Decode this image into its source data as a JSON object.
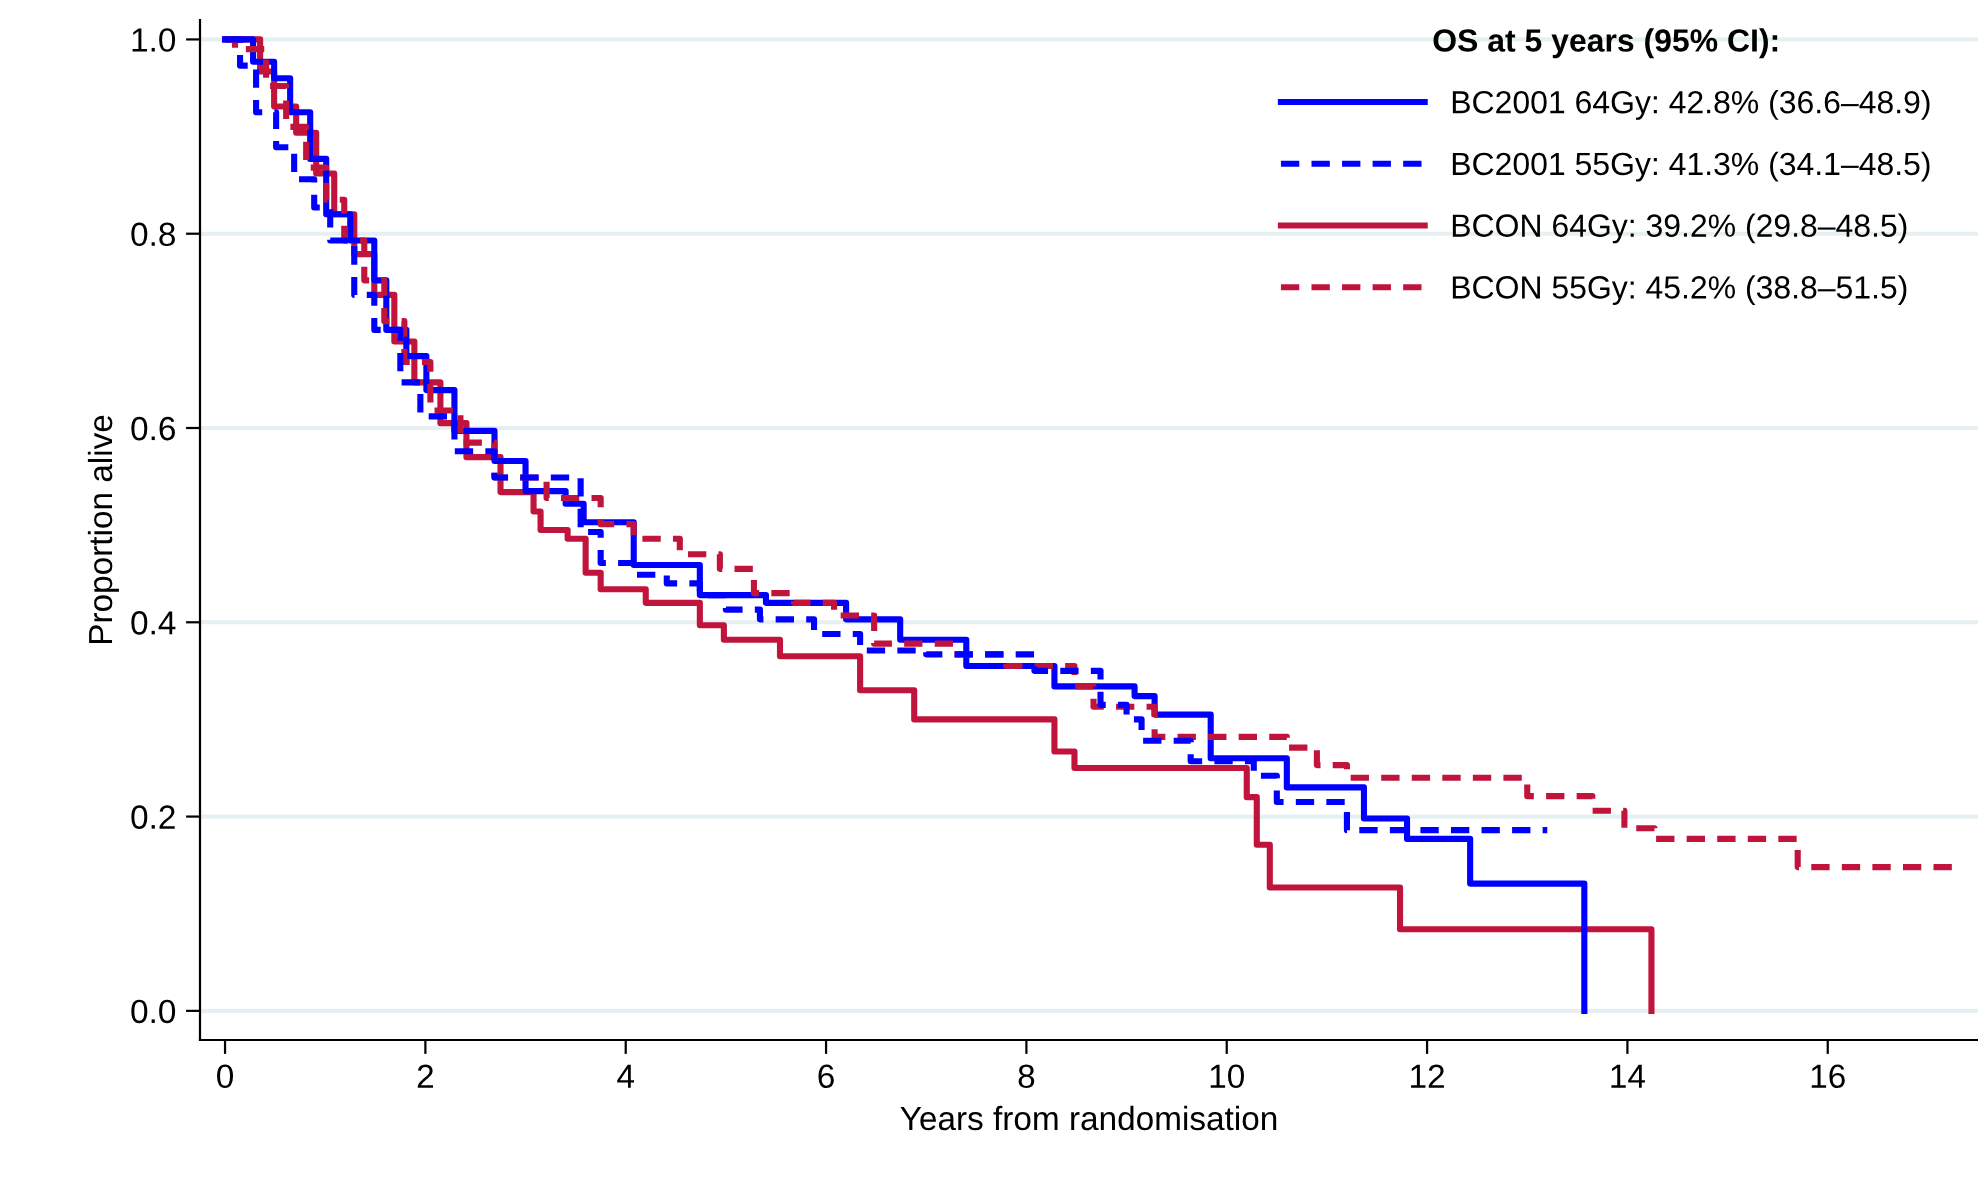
{
  "chart_data": {
    "type": "step",
    "xlabel": "Years from randomisation",
    "ylabel": "Proportion alive",
    "legend_title": "OS at 5 years (95% CI):",
    "legend": "top right",
    "grid": "y",
    "marker": "none",
    "xlim": [
      -0.25,
      17.5
    ],
    "ylim": [
      -0.03,
      1.02
    ],
    "xticks": [
      0,
      2,
      4,
      6,
      8,
      10,
      12,
      14,
      16
    ],
    "yticks": [
      {
        "value": 0,
        "label": "0.0"
      },
      {
        "value": 0.2,
        "label": "0.2"
      },
      {
        "value": 0.4,
        "label": "0.4"
      },
      {
        "value": 0.6,
        "label": "0.6"
      },
      {
        "value": 0.8,
        "label": "0.8"
      },
      {
        "value": 1,
        "label": "1.0"
      }
    ],
    "series": [
      {
        "name": "BC2001 64Gy: 42.8% (36.6–48.9)",
        "color": "#0000ff",
        "line_style": "solid",
        "x": [
          0,
          0.28,
          0.49,
          0.65,
          0.85,
          1.01,
          1.25,
          1.49,
          1.61,
          1.81,
          2.01,
          2.29,
          2.69,
          3.0,
          3.4,
          3.58,
          4.08,
          4.74,
          5.4,
          6.2,
          6.74,
          7.4,
          8.28,
          9.08,
          9.28,
          9.84,
          10.6,
          11.37,
          11.8,
          12.43,
          13.57
        ],
        "values": [
          1.0,
          0.977,
          0.96,
          0.925,
          0.877,
          0.82,
          0.793,
          0.752,
          0.701,
          0.674,
          0.639,
          0.597,
          0.566,
          0.535,
          0.522,
          0.503,
          0.459,
          0.428,
          0.42,
          0.403,
          0.382,
          0.355,
          0.334,
          0.324,
          0.305,
          0.26,
          0.23,
          0.198,
          0.177,
          0.131,
          0.0
        ]
      },
      {
        "name": "BC2001 55Gy: 41.3% (34.1–48.5)",
        "color": "#0000ff",
        "line_style": "dashed",
        "x": [
          0,
          0.15,
          0.31,
          0.51,
          0.69,
          0.89,
          1.05,
          1.29,
          1.49,
          1.75,
          1.95,
          2.29,
          2.69,
          3.55,
          3.75,
          4.08,
          4.41,
          4.74,
          5.0,
          5.34,
          5.88,
          6.34,
          7.0,
          8.08,
          8.74,
          9.0,
          9.15,
          9.64,
          10.27,
          10.5,
          11.2,
          13.2
        ],
        "values": [
          1.0,
          0.973,
          0.925,
          0.889,
          0.856,
          0.827,
          0.793,
          0.737,
          0.701,
          0.647,
          0.612,
          0.576,
          0.549,
          0.493,
          0.461,
          0.449,
          0.44,
          0.428,
          0.413,
          0.403,
          0.388,
          0.371,
          0.367,
          0.35,
          0.315,
          0.3,
          0.278,
          0.257,
          0.242,
          0.215,
          0.186,
          0.186
        ]
      },
      {
        "name": "BCON 64Gy: 39.2% (29.8–48.5)",
        "color": "#c0143c",
        "line_style": "solid",
        "x": [
          0,
          0.35,
          0.49,
          0.71,
          0.91,
          1.09,
          1.29,
          1.49,
          1.69,
          1.89,
          2.15,
          2.41,
          2.75,
          3.08,
          3.15,
          3.42,
          3.6,
          3.75,
          4.2,
          4.74,
          4.98,
          5.54,
          6.34,
          6.88,
          8.28,
          8.48,
          10.2,
          10.3,
          10.43,
          11.73,
          14.24
        ],
        "values": [
          1.0,
          0.967,
          0.931,
          0.904,
          0.862,
          0.82,
          0.779,
          0.737,
          0.689,
          0.647,
          0.605,
          0.57,
          0.534,
          0.514,
          0.495,
          0.486,
          0.451,
          0.434,
          0.42,
          0.397,
          0.382,
          0.365,
          0.33,
          0.3,
          0.267,
          0.25,
          0.22,
          0.171,
          0.127,
          0.084,
          0.0
        ]
      },
      {
        "name": "BCON 55Gy: 45.2% (38.8–51.5)",
        "color": "#c0143c",
        "line_style": "dashed",
        "x": [
          0,
          0.1,
          0.41,
          0.61,
          0.81,
          1.01,
          1.19,
          1.39,
          1.59,
          1.79,
          2.05,
          2.35,
          2.69,
          3.21,
          3.75,
          4.08,
          4.54,
          4.94,
          5.28,
          5.68,
          6.08,
          6.48,
          7.28,
          7.8,
          8.48,
          8.67,
          9.28,
          10.6,
          10.9,
          11.2,
          13.0,
          13.65,
          13.97,
          14.27,
          15.7,
          17.3
        ],
        "values": [
          1.0,
          0.99,
          0.952,
          0.91,
          0.868,
          0.835,
          0.793,
          0.752,
          0.71,
          0.668,
          0.618,
          0.585,
          0.549,
          0.528,
          0.501,
          0.486,
          0.47,
          0.455,
          0.43,
          0.42,
          0.407,
          0.378,
          0.367,
          0.355,
          0.334,
          0.313,
          0.282,
          0.271,
          0.253,
          0.24,
          0.221,
          0.206,
          0.188,
          0.177,
          0.148,
          0.148
        ]
      }
    ]
  }
}
